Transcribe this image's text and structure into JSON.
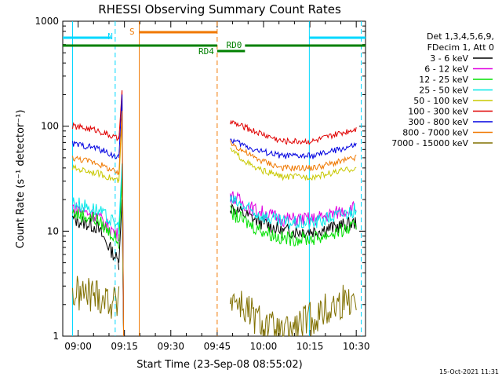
{
  "chart_data": {
    "type": "line",
    "title": "RHESSI Observing Summary Count Rates",
    "xlabel": "Start Time (23-Sep-08 08:55:02)",
    "ylabel": "Count Rate (s⁻¹ detector⁻¹)",
    "yscale": "log",
    "ylim": [
      1,
      1000
    ],
    "xlim": [
      "08:55:02",
      "10:33:00"
    ],
    "x_ticks": [
      "09:00",
      "09:15",
      "09:30",
      "09:45",
      "10:00",
      "10:15",
      "10:30"
    ],
    "y_ticks": [
      "1",
      "10",
      "100",
      "1000"
    ],
    "legend_header": [
      "Det 1,3,4,5,6,9,",
      "FDecim 1, Att 0"
    ],
    "legend_position": "right",
    "footer_date": "15-Oct-2021 11:31",
    "flags": [
      {
        "label": "N",
        "color": "#00d8ff"
      },
      {
        "label": "S",
        "color": "#f07800"
      },
      {
        "label": "RD0",
        "color": "#008000"
      },
      {
        "label": "RD4",
        "color": "#008000"
      }
    ],
    "data_gap": [
      "09:19",
      "09:45"
    ],
    "series": [
      {
        "name": "3 - 6 keV",
        "color": "#000000",
        "values": [
          [
            8.97,
            13
          ],
          [
            9.1,
            11
          ],
          [
            9.22,
            5
          ],
          [
            9.33,
            4.5
          ],
          [
            9.82,
            17
          ],
          [
            9.95,
            13
          ],
          [
            10.1,
            10
          ],
          [
            10.27,
            10
          ],
          [
            10.5,
            12
          ]
        ]
      },
      {
        "name": "6 - 12 keV",
        "color": "#e000e0",
        "values": [
          [
            8.97,
            17
          ],
          [
            9.1,
            14
          ],
          [
            9.22,
            9
          ],
          [
            9.33,
            7
          ],
          [
            9.82,
            22
          ],
          [
            9.95,
            16
          ],
          [
            10.1,
            13
          ],
          [
            10.27,
            13
          ],
          [
            10.5,
            17
          ]
        ]
      },
      {
        "name": "12 - 25 keV",
        "color": "#00e000",
        "values": [
          [
            8.97,
            15
          ],
          [
            9.1,
            13
          ],
          [
            9.22,
            8
          ],
          [
            9.33,
            6.5
          ],
          [
            9.82,
            15
          ],
          [
            9.95,
            11
          ],
          [
            10.1,
            8.5
          ],
          [
            10.27,
            8.5
          ],
          [
            10.5,
            11
          ]
        ]
      },
      {
        "name": "25 - 50 keV",
        "color": "#00e8e8",
        "values": [
          [
            8.97,
            19
          ],
          [
            9.1,
            16
          ],
          [
            9.22,
            11
          ],
          [
            9.33,
            9
          ],
          [
            9.82,
            20
          ],
          [
            9.95,
            15
          ],
          [
            10.1,
            12
          ],
          [
            10.27,
            12
          ],
          [
            10.5,
            16
          ]
        ]
      },
      {
        "name": "50 - 100 keV",
        "color": "#c8c800",
        "values": [
          [
            8.97,
            40
          ],
          [
            9.1,
            36
          ],
          [
            9.22,
            30
          ],
          [
            9.33,
            27
          ],
          [
            9.82,
            60
          ],
          [
            9.95,
            40
          ],
          [
            10.1,
            33
          ],
          [
            10.27,
            33
          ],
          [
            10.5,
            40
          ]
        ]
      },
      {
        "name": "100 - 300 keV",
        "color": "#e00000",
        "values": [
          [
            8.97,
            100
          ],
          [
            9.1,
            92
          ],
          [
            9.22,
            75
          ],
          [
            9.33,
            65
          ],
          [
            9.82,
            110
          ],
          [
            9.95,
            90
          ],
          [
            10.1,
            72
          ],
          [
            10.27,
            72
          ],
          [
            10.5,
            95
          ]
        ]
      },
      {
        "name": "300 - 800 keV",
        "color": "#0000e0",
        "values": [
          [
            8.97,
            68
          ],
          [
            9.1,
            62
          ],
          [
            9.22,
            50
          ],
          [
            9.33,
            42
          ],
          [
            9.82,
            75
          ],
          [
            9.95,
            60
          ],
          [
            10.1,
            52
          ],
          [
            10.27,
            52
          ],
          [
            10.5,
            66
          ]
        ]
      },
      {
        "name": "800 - 7000 keV",
        "color": "#f07800",
        "values": [
          [
            8.97,
            50
          ],
          [
            9.1,
            45
          ],
          [
            9.22,
            35
          ],
          [
            9.33,
            30
          ],
          [
            9.82,
            70
          ],
          [
            9.95,
            50
          ],
          [
            10.1,
            40
          ],
          [
            10.27,
            40
          ],
          [
            10.5,
            50
          ]
        ]
      },
      {
        "name": "7000 - 15000 keV",
        "color": "#807000",
        "values": [
          [
            8.97,
            2.5
          ],
          [
            9.1,
            2.5
          ],
          [
            9.22,
            2
          ],
          [
            9.33,
            1.8
          ],
          [
            9.82,
            2.5
          ],
          [
            9.95,
            1.5
          ],
          [
            10.1,
            1
          ],
          [
            10.27,
            1.5
          ],
          [
            10.5,
            2.5
          ]
        ]
      }
    ]
  }
}
